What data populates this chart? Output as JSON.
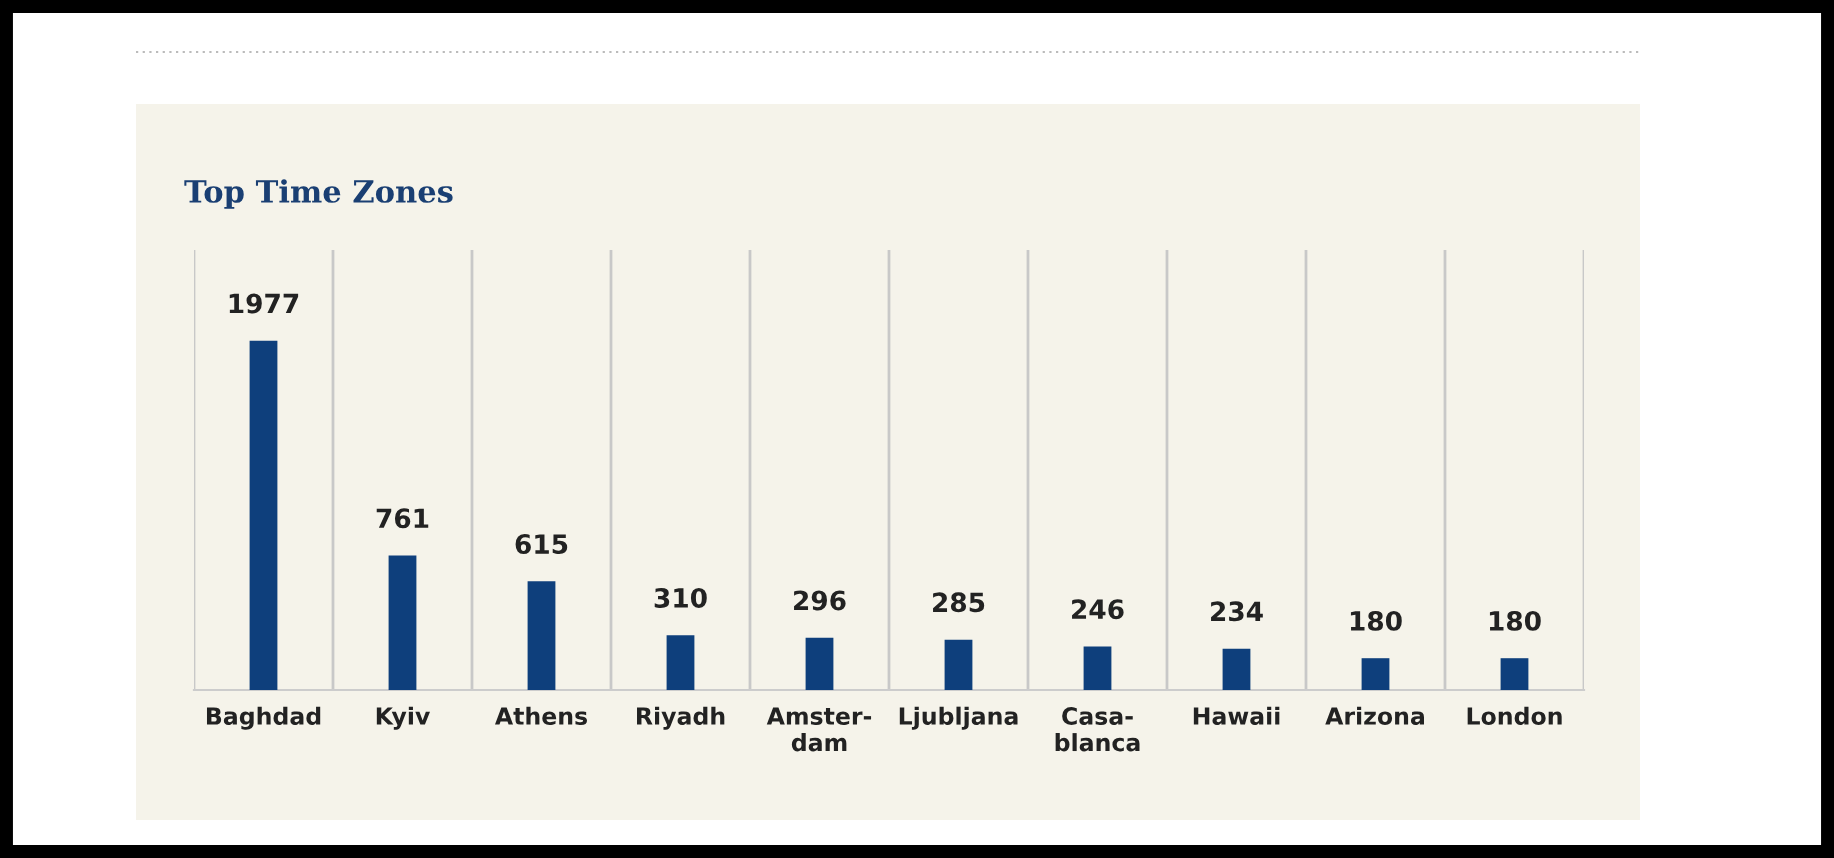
{
  "chart_data": {
    "type": "bar",
    "title": "Top Time Zones",
    "categories": [
      "Baghdad",
      "Kyiv",
      "Athens",
      "Riyadh",
      "Amster-\ndam",
      "Ljubljana",
      "Casa-\nblanca",
      "Hawaii",
      "Arizona",
      "London"
    ],
    "values": [
      1977,
      761,
      615,
      310,
      296,
      285,
      246,
      234,
      180,
      180
    ],
    "color": "#0e3f7c",
    "data_labels": true,
    "grid": "x"
  }
}
